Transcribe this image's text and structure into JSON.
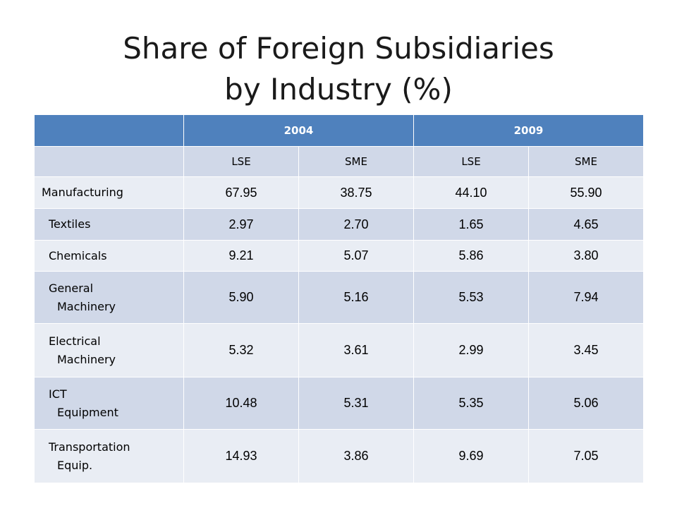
{
  "title": {
    "line1": "Share of Foreign Subsidiaries",
    "line2": "by Industry (%)"
  },
  "table": {
    "years": [
      "2004",
      "2009"
    ],
    "subheaders": [
      "LSE",
      "SME",
      "LSE",
      "SME"
    ],
    "rows": [
      {
        "label_line1": "Manufacturing",
        "label_line2": "",
        "values": [
          "67.95",
          "38.75",
          "44.10",
          "55.90"
        ]
      },
      {
        "label_line1": "Textiles",
        "label_line2": "",
        "values": [
          "2.97",
          "2.70",
          "1.65",
          "4.65"
        ]
      },
      {
        "label_line1": "Chemicals",
        "label_line2": "",
        "values": [
          "9.21",
          "5.07",
          "5.86",
          "3.80"
        ]
      },
      {
        "label_line1": "General",
        "label_line2": "Machinery",
        "values": [
          "5.90",
          "5.16",
          "5.53",
          "7.94"
        ]
      },
      {
        "label_line1": "Electrical",
        "label_line2": "Machinery",
        "values": [
          "5.32",
          "3.61",
          "2.99",
          "3.45"
        ]
      },
      {
        "label_line1": "ICT",
        "label_line2": "Equipment",
        "values": [
          "10.48",
          "5.31",
          "5.35",
          "5.06"
        ]
      },
      {
        "label_line1": "Transportation",
        "label_line2": "Equip.",
        "values": [
          "14.93",
          "3.86",
          "9.69",
          "7.05"
        ]
      }
    ]
  },
  "colors": {
    "header_blue": "#4f81bd",
    "row_dark": "#d0d8e8",
    "row_light": "#e9edf4"
  }
}
